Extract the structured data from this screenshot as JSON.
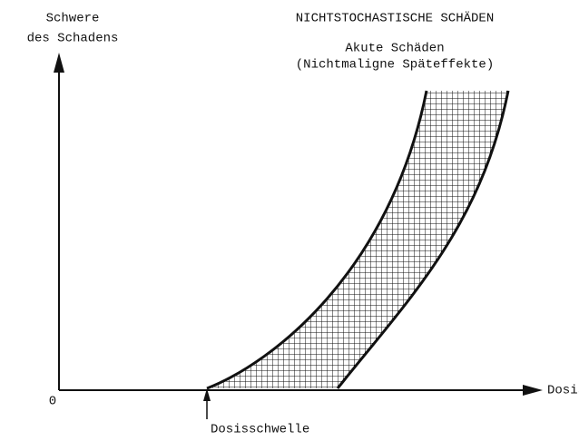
{
  "title": "NICHTSTOCHASTISCHE SCHÄDEN",
  "subtitle": {
    "line1": "Akute Schäden",
    "line2": "(Nichtmaligne Späteffekte)"
  },
  "y_axis_label": {
    "line1": "Schwere",
    "line2": "des Schadens"
  },
  "origin_label": "0",
  "x_axis_label": "Dosis",
  "threshold_label": "Dosisschwelle"
}
